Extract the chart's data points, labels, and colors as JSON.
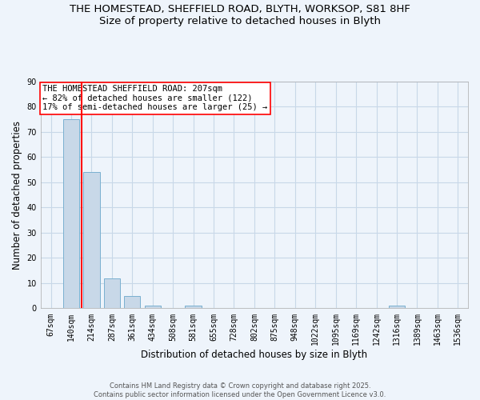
{
  "title_line1": "THE HOMESTEAD, SHEFFIELD ROAD, BLYTH, WORKSOP, S81 8HF",
  "title_line2": "Size of property relative to detached houses in Blyth",
  "xlabel": "Distribution of detached houses by size in Blyth",
  "ylabel": "Number of detached properties",
  "bar_labels": [
    "67sqm",
    "140sqm",
    "214sqm",
    "287sqm",
    "361sqm",
    "434sqm",
    "508sqm",
    "581sqm",
    "655sqm",
    "728sqm",
    "802sqm",
    "875sqm",
    "948sqm",
    "1022sqm",
    "1095sqm",
    "1169sqm",
    "1242sqm",
    "1316sqm",
    "1389sqm",
    "1463sqm",
    "1536sqm"
  ],
  "bar_values": [
    0,
    75,
    54,
    12,
    5,
    1,
    0,
    1,
    0,
    0,
    0,
    0,
    0,
    0,
    0,
    0,
    0,
    1,
    0,
    0,
    0
  ],
  "bar_color": "#c8d8e8",
  "bar_edge_color": "#7ab0d0",
  "grid_color": "#c8d8e8",
  "background_color": "#eef4fb",
  "vline_x": 1.5,
  "vline_color": "red",
  "annotation_text": "THE HOMESTEAD SHEFFIELD ROAD: 207sqm\n← 82% of detached houses are smaller (122)\n17% of semi-detached houses are larger (25) →",
  "annotation_box_color": "white",
  "annotation_box_edge": "red",
  "ylim": [
    0,
    90
  ],
  "yticks": [
    0,
    10,
    20,
    30,
    40,
    50,
    60,
    70,
    80,
    90
  ],
  "footer_text": "Contains HM Land Registry data © Crown copyright and database right 2025.\nContains public sector information licensed under the Open Government Licence v3.0.",
  "title_fontsize": 9.5,
  "axis_label_fontsize": 8.5,
  "tick_fontsize": 7,
  "annotation_fontsize": 7.5
}
